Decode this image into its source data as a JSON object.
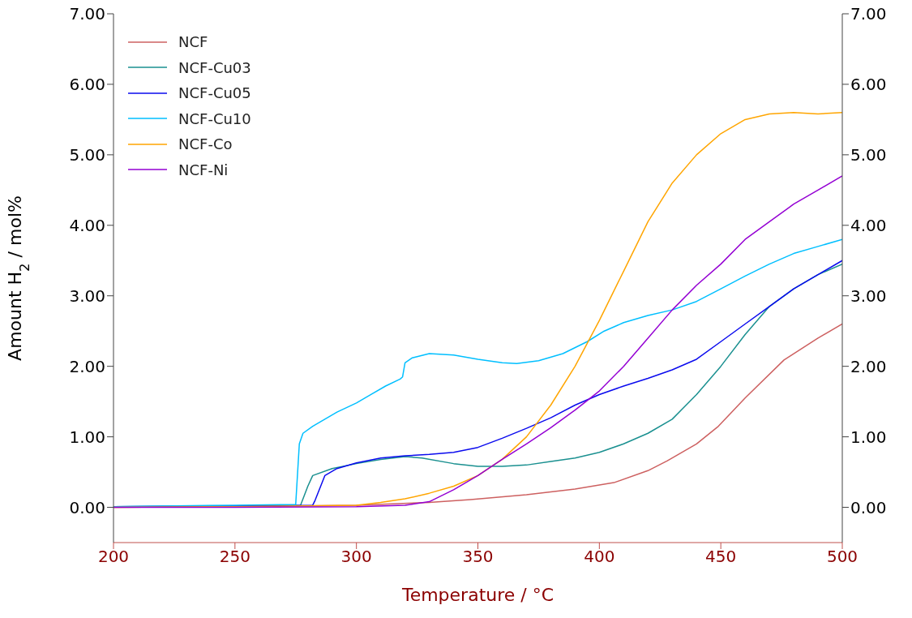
{
  "chart_data": {
    "type": "line",
    "xlabel": "Temperature / °C",
    "ylabel": "Amount H$_{2}$ / mol%",
    "xlim": [
      200,
      500
    ],
    "xticks": [
      200,
      250,
      300,
      350,
      400,
      450,
      500
    ],
    "ylim": [
      -0.5,
      7
    ],
    "yticks": [
      {
        "value": 0,
        "label": "0.00"
      },
      {
        "value": 1,
        "label": "1.00"
      },
      {
        "value": 2,
        "label": "2.00"
      },
      {
        "value": 3,
        "label": "3.00"
      },
      {
        "value": 4,
        "label": "4.00"
      },
      {
        "value": 5,
        "label": "5.00"
      },
      {
        "value": 6,
        "label": "6.00"
      },
      {
        "value": 7,
        "label": "7.00"
      }
    ],
    "y2lim": [
      -0.5,
      7
    ],
    "y2ticks": [
      {
        "value": 0,
        "label": "0.00"
      },
      {
        "value": 1,
        "label": "1.00"
      },
      {
        "value": 2,
        "label": "2.00"
      },
      {
        "value": 3,
        "label": "3.00"
      },
      {
        "value": 4,
        "label": "4.00"
      },
      {
        "value": 5,
        "label": "5.00"
      },
      {
        "value": 6,
        "label": "6.00"
      },
      {
        "value": 7,
        "label": "7.00"
      }
    ],
    "legend": "top left",
    "grid": false,
    "marker": "none",
    "line_style": "solid",
    "series": [
      {
        "name": "NCF",
        "color": "#cd6060",
        "x": [
          200,
          250,
          300,
          330,
          347,
          370,
          390,
          406,
          420,
          428,
          440,
          449,
          460,
          476,
          490,
          500
        ],
        "values": [
          0.0,
          0.01,
          0.03,
          0.07,
          0.11,
          0.18,
          0.26,
          0.35,
          0.52,
          0.66,
          0.9,
          1.15,
          1.55,
          2.09,
          2.4,
          2.6
        ]
      },
      {
        "name": "NCF-Cu03",
        "color": "#1a9090",
        "x": [
          200,
          250,
          277,
          280,
          282,
          290,
          300,
          310,
          320,
          327,
          340,
          350,
          360,
          370,
          380,
          390,
          400,
          410,
          420,
          430,
          440,
          450,
          460,
          470,
          480,
          490,
          500
        ],
        "values": [
          0.01,
          0.02,
          0.03,
          0.3,
          0.45,
          0.55,
          0.62,
          0.68,
          0.72,
          0.7,
          0.62,
          0.58,
          0.58,
          0.6,
          0.65,
          0.7,
          0.78,
          0.9,
          1.05,
          1.25,
          1.6,
          2.0,
          2.45,
          2.85,
          3.1,
          3.3,
          3.45
        ]
      },
      {
        "name": "NCF-Cu05",
        "color": "#0a0aee",
        "x": [
          200,
          250,
          282,
          283,
          287,
          292,
          300,
          310,
          320,
          330,
          340,
          350,
          360,
          370,
          380,
          390,
          400,
          410,
          420,
          430,
          440,
          450,
          460,
          470,
          480,
          490,
          500
        ],
        "values": [
          0.01,
          0.02,
          0.03,
          0.1,
          0.45,
          0.55,
          0.63,
          0.7,
          0.73,
          0.75,
          0.78,
          0.85,
          0.98,
          1.12,
          1.27,
          1.45,
          1.6,
          1.72,
          1.83,
          1.95,
          2.1,
          2.35,
          2.6,
          2.85,
          3.1,
          3.3,
          3.5
        ]
      },
      {
        "name": "NCF-Cu10",
        "color": "#00bfff",
        "x": [
          200,
          250,
          275,
          276.5,
          278,
          282,
          287,
          292,
          300,
          306,
          312,
          318,
          319,
          320,
          323,
          330,
          340,
          350,
          360,
          366,
          375,
          385,
          395,
          402,
          410,
          420,
          430,
          440,
          450,
          460,
          470,
          480,
          490,
          500
        ],
        "values": [
          0.01,
          0.03,
          0.04,
          0.9,
          1.05,
          1.15,
          1.25,
          1.35,
          1.48,
          1.6,
          1.72,
          1.82,
          1.85,
          2.05,
          2.12,
          2.18,
          2.16,
          2.1,
          2.05,
          2.04,
          2.08,
          2.18,
          2.35,
          2.5,
          2.62,
          2.72,
          2.8,
          2.92,
          3.1,
          3.28,
          3.45,
          3.6,
          3.7,
          3.8
        ]
      },
      {
        "name": "NCF-Co",
        "color": "#ffa500",
        "x": [
          200,
          250,
          300,
          310,
          320,
          330,
          340,
          350,
          360,
          370,
          380,
          390,
          400,
          410,
          420,
          430,
          440,
          450,
          460,
          470,
          480,
          490,
          500
        ],
        "values": [
          0.0,
          0.01,
          0.03,
          0.07,
          0.12,
          0.2,
          0.3,
          0.45,
          0.68,
          1.0,
          1.45,
          2.0,
          2.65,
          3.35,
          4.05,
          4.6,
          5.0,
          5.3,
          5.5,
          5.58,
          5.6,
          5.58,
          5.6
        ]
      },
      {
        "name": "NCF-Ni",
        "color": "#9400d3",
        "x": [
          200,
          250,
          300,
          320,
          330,
          340,
          350,
          360,
          370,
          380,
          390,
          400,
          410,
          420,
          430,
          440,
          450,
          460,
          470,
          480,
          490,
          500
        ],
        "values": [
          0.0,
          0.0,
          0.01,
          0.03,
          0.08,
          0.25,
          0.45,
          0.68,
          0.9,
          1.13,
          1.38,
          1.65,
          2.0,
          2.4,
          2.8,
          3.15,
          3.45,
          3.8,
          4.05,
          4.3,
          4.5,
          4.7
        ]
      }
    ]
  }
}
